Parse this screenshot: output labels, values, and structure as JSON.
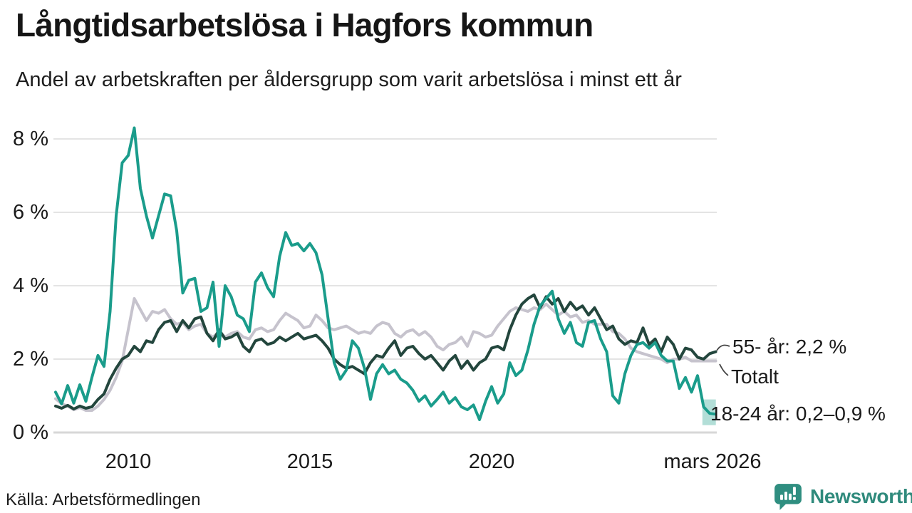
{
  "header": {
    "title": "Långtidsarbetslösa i Hagfors kommun",
    "subtitle": "Andel av arbetskraften per åldersgrupp som varit arbetslösa i minst ett år"
  },
  "footer": {
    "source": "Källa: Arbetsförmedlingen",
    "brand": "Newsworthy"
  },
  "colors": {
    "teal_line": "#1a9c8b",
    "dark_line": "#23463d",
    "gray_line": "#c6c3cd",
    "forecast_band": "#a5d8d0",
    "gridline": "#e4e4e4",
    "zero_line": "#d7d7d7",
    "text": "#1a1a1a",
    "brand_teal": "#2f8a7c",
    "connector": "#444444"
  },
  "chart_data": {
    "type": "line",
    "title": "Långtidsarbetslösa i Hagfors kommun",
    "subtitle": "Andel av arbetskraften per åldersgrupp som varit arbetslösa i minst ett år",
    "unit": "% av arbetskraften",
    "grid": "horizontal",
    "x_start": 2008.0,
    "x_step_years": 0.16667,
    "x_range": [
      2008.0,
      2026.25
    ],
    "y_range": [
      0,
      8.6
    ],
    "y_axis": {
      "ticks": [
        {
          "value": 8,
          "label": "8 %"
        },
        {
          "value": 6,
          "label": "6 %"
        },
        {
          "value": 4,
          "label": "4 %"
        },
        {
          "value": 2,
          "label": "2 %"
        },
        {
          "value": 0,
          "label": "0 %"
        }
      ]
    },
    "x_axis": {
      "ticks": [
        {
          "pos": 2010.0,
          "label": "2010"
        },
        {
          "pos": 2015.0,
          "label": "2015"
        },
        {
          "pos": 2020.0,
          "label": "2020"
        },
        {
          "pos": 2026.08,
          "label": "mars 2026"
        }
      ]
    },
    "series": [
      {
        "name": "18-24 år",
        "label": "18-24 år: 0,2–0,9 %",
        "color": "#1a9c8b",
        "values": [
          1.1,
          0.78,
          1.28,
          0.8,
          1.3,
          0.85,
          1.5,
          2.1,
          1.8,
          3.3,
          5.9,
          7.35,
          7.55,
          8.3,
          6.65,
          5.9,
          5.3,
          5.9,
          6.5,
          6.45,
          5.5,
          3.8,
          4.15,
          4.2,
          3.3,
          3.4,
          4.1,
          2.35,
          4.0,
          3.7,
          3.2,
          3.1,
          2.75,
          4.1,
          4.35,
          3.95,
          3.7,
          4.8,
          5.45,
          5.1,
          5.15,
          4.95,
          5.15,
          4.9,
          4.3,
          3.1,
          1.9,
          1.45,
          1.7,
          2.5,
          2.3,
          1.75,
          0.9,
          1.6,
          1.85,
          1.6,
          1.7,
          1.45,
          1.35,
          1.15,
          0.85,
          1.0,
          0.72,
          0.9,
          1.1,
          0.8,
          0.95,
          0.7,
          0.62,
          0.75,
          0.35,
          0.85,
          1.25,
          0.8,
          1.05,
          1.9,
          1.55,
          1.7,
          2.25,
          2.95,
          3.45,
          3.65,
          3.85,
          3.1,
          2.7,
          3.0,
          2.45,
          2.35,
          3.0,
          3.05,
          2.55,
          2.2,
          1.0,
          0.8,
          1.6,
          2.1,
          2.4,
          2.45,
          2.3,
          2.45,
          2.1,
          1.95,
          1.95,
          1.2,
          1.5,
          1.1,
          1.55,
          0.7,
          0.52,
          0.5
        ]
      },
      {
        "name": "55- år",
        "label": "55- år: 2,2 %",
        "color": "#23463d",
        "values": [
          0.72,
          0.66,
          0.74,
          0.64,
          0.72,
          0.66,
          0.7,
          0.9,
          1.05,
          1.45,
          1.75,
          2.0,
          2.1,
          2.35,
          2.2,
          2.5,
          2.45,
          2.8,
          3.0,
          3.05,
          2.75,
          3.05,
          2.85,
          3.1,
          3.15,
          2.7,
          2.5,
          2.8,
          2.55,
          2.6,
          2.7,
          2.35,
          2.2,
          2.5,
          2.55,
          2.4,
          2.45,
          2.6,
          2.5,
          2.6,
          2.7,
          2.55,
          2.6,
          2.65,
          2.5,
          2.3,
          2.0,
          1.85,
          1.75,
          1.8,
          1.7,
          1.6,
          1.9,
          2.1,
          2.05,
          2.3,
          2.5,
          2.1,
          2.3,
          2.35,
          2.15,
          2.0,
          2.1,
          1.9,
          1.7,
          1.95,
          2.1,
          1.75,
          1.95,
          1.7,
          1.9,
          2.0,
          2.3,
          2.35,
          2.25,
          2.8,
          3.2,
          3.5,
          3.65,
          3.75,
          3.4,
          3.7,
          3.5,
          3.65,
          3.3,
          3.55,
          3.35,
          3.45,
          3.2,
          3.4,
          3.1,
          2.8,
          2.9,
          2.55,
          2.4,
          2.5,
          2.45,
          2.85,
          2.4,
          2.55,
          2.2,
          2.6,
          2.4,
          2.0,
          2.3,
          2.25,
          2.05,
          2.0,
          2.15,
          2.2
        ]
      },
      {
        "name": "Totalt",
        "label": "Totalt",
        "color": "#c6c3cd",
        "values": [
          0.92,
          0.78,
          0.72,
          0.62,
          0.68,
          0.6,
          0.6,
          0.72,
          0.9,
          1.15,
          1.5,
          1.95,
          2.8,
          3.65,
          3.35,
          3.05,
          3.3,
          3.25,
          3.35,
          3.1,
          2.95,
          3.0,
          2.8,
          2.9,
          2.95,
          2.7,
          2.6,
          2.75,
          2.6,
          2.7,
          2.75,
          2.6,
          2.55,
          2.8,
          2.85,
          2.75,
          2.8,
          3.05,
          3.25,
          3.15,
          3.05,
          2.85,
          2.9,
          3.2,
          3.05,
          2.85,
          2.8,
          2.85,
          2.9,
          2.8,
          2.7,
          2.75,
          2.7,
          2.9,
          3.0,
          2.95,
          2.7,
          2.6,
          2.75,
          2.8,
          2.65,
          2.75,
          2.6,
          2.35,
          2.25,
          2.4,
          2.45,
          2.6,
          2.35,
          2.75,
          2.7,
          2.6,
          2.65,
          2.9,
          3.1,
          3.3,
          3.4,
          3.35,
          3.3,
          3.4,
          3.35,
          3.5,
          3.35,
          3.2,
          3.3,
          3.15,
          3.2,
          3.0,
          3.05,
          2.95,
          2.95,
          2.95,
          2.75,
          2.7,
          2.55,
          2.3,
          2.2,
          2.15,
          2.1,
          2.05,
          2.0,
          1.9,
          2.0,
          2.0,
          2.05,
          1.95,
          1.95,
          1.95,
          1.95,
          1.95
        ]
      }
    ],
    "forecast_band": {
      "series": "18-24 år",
      "x_from": 2025.8,
      "x_to": 2026.17,
      "y_from": 0.2,
      "y_to": 0.9,
      "color": "#a5d8d0",
      "label_value": "0,2–0,9 %"
    },
    "legend_position": "right-end-labels"
  }
}
